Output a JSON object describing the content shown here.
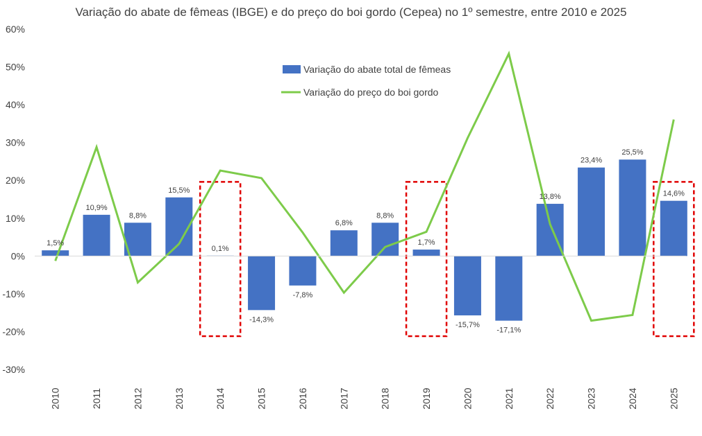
{
  "chart_data": {
    "type": "bar+line",
    "title": "Variação do abate de fêmeas (IBGE) e do preço do boi gordo (Cepea) no 1º semestre, entre 2010 e 2025",
    "categories": [
      "2010",
      "2011",
      "2012",
      "2013",
      "2014",
      "2015",
      "2016",
      "2017",
      "2018",
      "2019",
      "2020",
      "2021",
      "2022",
      "2023",
      "2024",
      "2025"
    ],
    "series": [
      {
        "name": "Variação do abate total de fêmeas",
        "kind": "bar",
        "color": "#4472C4",
        "values": [
          1.5,
          10.9,
          8.8,
          15.5,
          0.1,
          -14.3,
          -7.8,
          6.8,
          8.8,
          1.7,
          -15.7,
          -17.1,
          13.8,
          23.4,
          25.5,
          14.6
        ],
        "labels": [
          "1,5%",
          "10,9%",
          "8,8%",
          "15,5%",
          "0,1%",
          "-14,3%",
          "-7,8%",
          "6,8%",
          "8,8%",
          "1,7%",
          "-15,7%",
          "-17,1%",
          "13,8%",
          "23,4%",
          "25,5%",
          "14,6%"
        ]
      },
      {
        "name": "Variação do preço do boi gordo",
        "kind": "line",
        "color": "#7DCB4A",
        "values": [
          -1.3,
          28.8,
          -7.0,
          3.2,
          22.6,
          20.6,
          6.2,
          -9.7,
          2.4,
          6.4,
          31.2,
          53.5,
          8.4,
          -17.1,
          -15.6,
          36.1
        ]
      }
    ],
    "y_ticks": [
      "60%",
      "50%",
      "40%",
      "30%",
      "20%",
      "10%",
      "0%",
      "-10%",
      "-20%",
      "-30%"
    ],
    "ylim": [
      -30,
      60
    ],
    "highlighted_years": [
      "2014",
      "2019",
      "2025"
    ],
    "highlight_color": "#E00000",
    "legend_position": "top-center"
  }
}
